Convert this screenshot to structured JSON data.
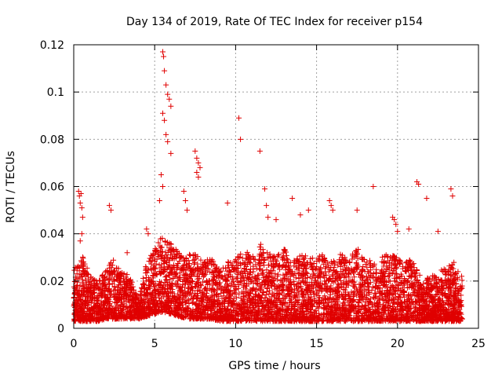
{
  "chart_data": {
    "type": "scatter",
    "title": "Day 134 of 2019, Rate Of TEC Index for receiver p154",
    "xlabel": "GPS time / hours",
    "ylabel": "ROTI / TECUs",
    "xlim": [
      0,
      25
    ],
    "ylim": [
      0,
      0.12
    ],
    "x_ticks": [
      {
        "value": 0,
        "label": "0"
      },
      {
        "value": 5,
        "label": "5"
      },
      {
        "value": 10,
        "label": "10"
      },
      {
        "value": 15,
        "label": "15"
      },
      {
        "value": 20,
        "label": "20"
      },
      {
        "value": 25,
        "label": "25"
      }
    ],
    "y_ticks": [
      {
        "value": 0,
        "label": "0"
      },
      {
        "value": 0.02,
        "label": "0.02"
      },
      {
        "value": 0.04,
        "label": "0.04"
      },
      {
        "value": 0.06,
        "label": "0.06"
      },
      {
        "value": 0.08,
        "label": "0.08"
      },
      {
        "value": 0.1,
        "label": "0.1"
      },
      {
        "value": 0.12,
        "label": "0.12"
      }
    ],
    "grid": true,
    "marker": "+",
    "series_color": "#e00000",
    "series": [
      {
        "name": "ROTI",
        "x": [
          0.3,
          0.35,
          0.4,
          0.45,
          0.5,
          0.55,
          0.4,
          0.5,
          2.2,
          2.3,
          3.3,
          5.5,
          5.55,
          5.6,
          5.7,
          5.8,
          5.9,
          6.0,
          5.5,
          5.6,
          5.7,
          5.8,
          6.0,
          5.4,
          5.5,
          5.3,
          4.5,
          4.6,
          7.5,
          7.6,
          7.7,
          7.8,
          7.6,
          7.7,
          6.8,
          6.9,
          7.0,
          9.5,
          10.2,
          10.3,
          11.5,
          11.8,
          11.9,
          12.0,
          12.5,
          13.5,
          14.0,
          14.5,
          15.8,
          15.9,
          16.0,
          17.5,
          18.5,
          19.7,
          19.8,
          19.9,
          20.0,
          20.7,
          21.2,
          21.3,
          21.8,
          22.5,
          23.3,
          23.4
        ],
        "y": [
          0.058,
          0.056,
          0.053,
          0.057,
          0.051,
          0.047,
          0.037,
          0.04,
          0.052,
          0.05,
          0.032,
          0.117,
          0.115,
          0.109,
          0.103,
          0.099,
          0.097,
          0.094,
          0.091,
          0.088,
          0.082,
          0.079,
          0.074,
          0.065,
          0.06,
          0.054,
          0.042,
          0.04,
          0.075,
          0.072,
          0.07,
          0.068,
          0.066,
          0.064,
          0.058,
          0.054,
          0.05,
          0.053,
          0.089,
          0.08,
          0.075,
          0.059,
          0.052,
          0.047,
          0.046,
          0.055,
          0.048,
          0.05,
          0.054,
          0.052,
          0.05,
          0.05,
          0.06,
          0.047,
          0.046,
          0.044,
          0.041,
          0.042,
          0.062,
          0.061,
          0.055,
          0.041,
          0.059,
          0.056
        ]
      }
    ],
    "dense_band": {
      "description": "hourly envelope of dense ROTI scatter",
      "hours": [
        0,
        0.5,
        1,
        1.5,
        2,
        2.5,
        3,
        3.5,
        4,
        4.5,
        5,
        5.5,
        6,
        6.5,
        7,
        7.5,
        8,
        8.5,
        9,
        9.5,
        10,
        10.5,
        11,
        11.5,
        12,
        12.5,
        13,
        13.5,
        14,
        14.5,
        15,
        15.5,
        16,
        16.5,
        17,
        17.5,
        18,
        18.5,
        19,
        19.5,
        20,
        20.5,
        21,
        21.5,
        22,
        22.5,
        23,
        23.5,
        24
      ],
      "upper": [
        0.025,
        0.032,
        0.022,
        0.02,
        0.026,
        0.03,
        0.024,
        0.022,
        0.012,
        0.028,
        0.034,
        0.04,
        0.036,
        0.032,
        0.03,
        0.034,
        0.028,
        0.03,
        0.026,
        0.028,
        0.03,
        0.034,
        0.03,
        0.036,
        0.032,
        0.03,
        0.034,
        0.028,
        0.032,
        0.03,
        0.03,
        0.032,
        0.028,
        0.032,
        0.03,
        0.034,
        0.03,
        0.028,
        0.03,
        0.032,
        0.03,
        0.028,
        0.03,
        0.02,
        0.022,
        0.024,
        0.026,
        0.028,
        0.022
      ],
      "lower": [
        0.003,
        0.003,
        0.003,
        0.003,
        0.004,
        0.004,
        0.004,
        0.004,
        0.004,
        0.005,
        0.006,
        0.007,
        0.006,
        0.005,
        0.004,
        0.004,
        0.004,
        0.004,
        0.003,
        0.003,
        0.003,
        0.003,
        0.003,
        0.003,
        0.003,
        0.003,
        0.003,
        0.003,
        0.003,
        0.003,
        0.003,
        0.003,
        0.003,
        0.003,
        0.003,
        0.003,
        0.003,
        0.003,
        0.003,
        0.003,
        0.003,
        0.003,
        0.003,
        0.003,
        0.003,
        0.003,
        0.003,
        0.003,
        0.003
      ],
      "count": 5200
    }
  }
}
